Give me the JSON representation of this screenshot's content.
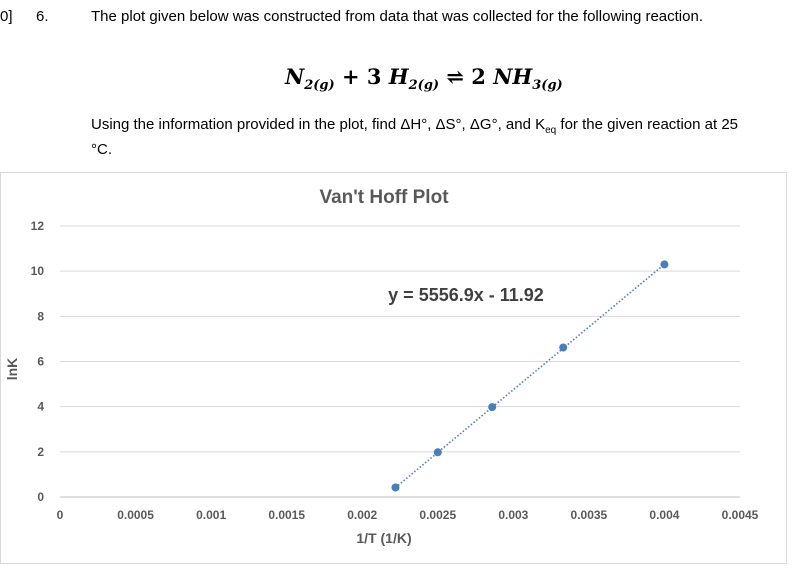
{
  "question": {
    "prefix": "0]",
    "number": "6.",
    "intro": "The plot given below was constructed from data that was collected for the following reaction.",
    "reaction": {
      "r1": "N",
      "r1_sub": "2(g)",
      "plus": " + 3 ",
      "r2": "H",
      "r2_sub": "2(g)",
      "arrow": " ⇌ 2 ",
      "p1": "NH",
      "p1_sub": "3(g)"
    },
    "task_before": "Using the information provided in the plot, find ΔH°, ΔS°, ΔG°, and K",
    "task_sub": "eq",
    "task_after": " for the given reaction at 25 °C."
  },
  "chart_data": {
    "type": "scatter",
    "title": "Van't Hoff Plot",
    "xlabel": "1/T (1/K)",
    "ylabel": "lnK",
    "xlim": [
      0,
      0.0045
    ],
    "ylim": [
      0,
      12
    ],
    "x_ticks": [
      0,
      0.0005,
      0.001,
      0.0015,
      0.002,
      0.0025,
      0.003,
      0.0035,
      0.004,
      0.0045
    ],
    "x_tick_labels": [
      "0",
      "0.0005",
      "0.001",
      "0.0015",
      "0.002",
      "0.0025",
      "0.003",
      "0.0035",
      "0.004",
      "0.0045"
    ],
    "y_ticks": [
      0,
      2,
      4,
      6,
      8,
      10,
      12
    ],
    "y_tick_labels": [
      "0",
      "2",
      "4",
      "6",
      "8",
      "10",
      "12"
    ],
    "grid": true,
    "series": [
      {
        "x": [
          0.00222,
          0.0025,
          0.00286,
          0.00333,
          0.004
        ],
        "y": [
          0.42,
          1.98,
          3.98,
          6.62,
          10.3
        ],
        "color": "#4a7ebb"
      }
    ],
    "trendline": {
      "equation": "y = 5556.9x - 11.92",
      "slope": 5556.9,
      "intercept": -11.92,
      "x_range": [
        0.00222,
        0.004
      ],
      "style": "dotted",
      "color": "#4a7ebb"
    }
  }
}
